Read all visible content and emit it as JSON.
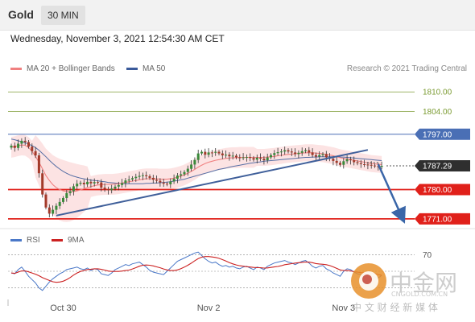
{
  "header": {
    "symbol": "Gold",
    "timeframe": "30 MIN"
  },
  "datetime": "Wednesday, November 3, 2021 12:54:30 AM CET",
  "legend": {
    "ma20_label": "MA 20 + Bollinger Bands",
    "ma50_label": "MA 50",
    "credit": "Research © 2021 Trading Central"
  },
  "rsi_legend": {
    "rsi_label": "RSI",
    "ma_label": "9MA"
  },
  "colors": {
    "ma20": "#f08080",
    "ma50": "#3a5a9a",
    "bollinger": "#fbd9d9",
    "resistance": "#7a9a30",
    "pivot": "#4a6fb5",
    "support": "#e0201a",
    "trendline": "#3f5f9a",
    "arrow": "#3a66a8",
    "bull_candle": "#3a8a3a",
    "bear_candle": "#a33a2a",
    "rsi": "#4a78c8",
    "rsi_ma": "#cc2222"
  },
  "watermark": {
    "brand": "中金网",
    "domain": "CNGOLD.COM.CN",
    "tagline": "中 文 财 经 新 媒 体"
  },
  "chart_data": {
    "type": "candlestick",
    "instrument": "Gold",
    "timeframe": "30 MIN",
    "x_ticks": [
      "Oct 30",
      "Nov 2",
      "Nov 3"
    ],
    "y_range": [
      1768,
      1815
    ],
    "levels": [
      {
        "value": 1810.0,
        "label": "1810.00",
        "kind": "resistance"
      },
      {
        "value": 1804.0,
        "label": "1804.00",
        "kind": "resistance"
      },
      {
        "value": 1797.0,
        "label": "1797.00",
        "kind": "pivot"
      },
      {
        "value": 1787.29,
        "label": "1787.29",
        "kind": "last"
      },
      {
        "value": 1780.0,
        "label": "1780.00",
        "kind": "support"
      },
      {
        "value": 1771.0,
        "label": "1771.00",
        "kind": "support"
      }
    ],
    "close": [
      1793.5,
      1792.8,
      1794.1,
      1795.0,
      1794.6,
      1793.2,
      1791.8,
      1790.5,
      1785.0,
      1778.5,
      1774.5,
      1772.6,
      1773.8,
      1775.0,
      1776.2,
      1777.4,
      1778.9,
      1779.5,
      1781.0,
      1781.8,
      1782.1,
      1781.6,
      1782.4,
      1781.9,
      1782.3,
      1782.2,
      1780.6,
      1780.1,
      1779.8,
      1780.3,
      1780.9,
      1781.4,
      1782.0,
      1782.8,
      1783.1,
      1783.5,
      1783.9,
      1784.2,
      1784.4,
      1784.1,
      1783.6,
      1783.0,
      1782.7,
      1782.2,
      1781.8,
      1781.6,
      1782.5,
      1783.3,
      1784.3,
      1784.7,
      1785.4,
      1786.4,
      1787.7,
      1789.1,
      1791.1,
      1791.6,
      1790.7,
      1791.4,
      1791.3,
      1791.6,
      1791.1,
      1790.5,
      1790.7,
      1790.2,
      1790.4,
      1789.9,
      1789.8,
      1789.9,
      1790.0,
      1789.7,
      1789.2,
      1789.8,
      1789.5,
      1789.0,
      1789.9,
      1790.6,
      1791.2,
      1791.5,
      1791.7,
      1792.1,
      1791.7,
      1791.4,
      1790.9,
      1791.3,
      1791.8,
      1792.1,
      1791.4,
      1790.6,
      1790.1,
      1790.6,
      1790.9,
      1789.9,
      1789.5,
      1788.8,
      1788.2,
      1787.6,
      1788.7,
      1789.3,
      1789.0,
      1788.4,
      1788.1,
      1787.8,
      1787.7,
      1787.6,
      1787.4,
      1787.2,
      1787.0,
      1787.29
    ],
    "ma20": [
      1793.0,
      1793.2,
      1793.5,
      1793.7,
      1793.6,
      1792.9,
      1791.8,
      1790.2,
      1788.4,
      1786.4,
      1784.3,
      1782.8,
      1781.5,
      1780.6,
      1780.0,
      1779.6,
      1779.4,
      1779.3,
      1779.4,
      1779.6,
      1779.9,
      1780.3,
      1780.6,
      1780.9,
      1781.2,
      1781.4,
      1781.5,
      1781.6,
      1781.6,
      1781.6,
      1781.7,
      1781.8,
      1782.0,
      1782.2,
      1782.4,
      1782.6,
      1782.8,
      1783.0,
      1783.2,
      1783.3,
      1783.3,
      1783.3,
      1783.3,
      1783.2,
      1783.2,
      1783.2,
      1783.3,
      1783.5,
      1783.8,
      1784.1,
      1784.5,
      1785.0,
      1785.6,
      1786.2,
      1786.9,
      1787.5,
      1788.0,
      1788.4,
      1788.7,
      1789.0,
      1789.2,
      1789.4,
      1789.6,
      1789.7,
      1789.8,
      1789.8,
      1789.9,
      1789.9,
      1789.9,
      1789.9,
      1789.9,
      1789.9,
      1789.9,
      1789.9,
      1790.0,
      1790.1,
      1790.2,
      1790.4,
      1790.5,
      1790.7,
      1790.8,
      1790.9,
      1791.0,
      1791.1,
      1791.2,
      1791.3,
      1791.3,
      1791.3,
      1791.2,
      1791.1,
      1791.0,
      1790.8,
      1790.6,
      1790.4,
      1790.1,
      1789.8,
      1789.6,
      1789.4,
      1789.2,
      1789.0,
      1788.8,
      1788.6,
      1788.4,
      1788.2,
      1788.0,
      1787.9,
      1787.8,
      1787.7
    ],
    "ma50": [
      1795.5,
      1795.3,
      1795.0,
      1794.7,
      1794.4,
      1794.0,
      1793.5,
      1792.9,
      1792.1,
      1791.1,
      1790.1,
      1789.0,
      1788.0,
      1787.1,
      1786.3,
      1785.6,
      1785.0,
      1784.5,
      1784.1,
      1783.8,
      1783.5,
      1783.3,
      1783.1,
      1782.9,
      1782.8,
      1782.7,
      1782.5,
      1782.4,
      1782.2,
      1782.1,
      1782.0,
      1781.9,
      1781.9,
      1781.8,
      1781.8,
      1781.8,
      1781.8,
      1781.8,
      1781.8,
      1781.9,
      1781.9,
      1782.0,
      1782.0,
      1782.1,
      1782.2,
      1782.3,
      1782.4,
      1782.6,
      1782.8,
      1783.0,
      1783.2,
      1783.5,
      1783.8,
      1784.1,
      1784.4,
      1784.7,
      1785.0,
      1785.3,
      1785.6,
      1785.9,
      1786.2,
      1786.4,
      1786.6,
      1786.9,
      1787.1,
      1787.3,
      1787.5,
      1787.7,
      1787.9,
      1788.1,
      1788.2,
      1788.4,
      1788.5,
      1788.7,
      1788.8,
      1788.9,
      1789.0,
      1789.1,
      1789.2,
      1789.3,
      1789.4,
      1789.5,
      1789.6,
      1789.7,
      1789.8,
      1789.9,
      1789.9,
      1790.0,
      1790.0,
      1790.1,
      1790.1,
      1790.1,
      1790.1,
      1790.1,
      1790.1,
      1790.0,
      1790.0,
      1789.9,
      1789.8,
      1789.7,
      1789.6,
      1789.5,
      1789.4,
      1789.3,
      1789.2,
      1789.1,
      1789.0,
      1788.9
    ],
    "trendline": {
      "from": {
        "index": 13,
        "value": 1772.0
      },
      "to": {
        "index": 103,
        "value": 1792.2
      }
    },
    "projection": {
      "from": {
        "index": 106,
        "value": 1787.8
      },
      "to": {
        "index": 113,
        "value": 1771.2
      }
    },
    "rsi_panel": {
      "level_label": "70",
      "rsi": [
        48,
        47,
        52,
        55,
        50,
        44,
        40,
        36,
        30,
        27,
        32,
        37,
        41,
        44,
        47,
        49,
        52,
        53,
        54,
        55,
        53,
        52,
        54,
        51,
        53,
        52,
        47,
        46,
        45,
        48,
        52,
        54,
        56,
        58,
        57,
        59,
        60,
        61,
        58,
        55,
        51,
        49,
        48,
        47,
        46,
        50,
        54,
        58,
        62,
        64,
        66,
        68,
        70,
        72,
        73,
        69,
        65,
        62,
        60,
        61,
        58,
        56,
        57,
        55,
        56,
        54,
        53,
        55,
        56,
        54,
        52,
        55,
        54,
        52,
        56,
        58,
        60,
        61,
        62,
        63,
        61,
        60,
        58,
        60,
        62,
        63,
        60,
        56,
        54,
        56,
        57,
        53,
        51,
        48,
        46,
        44,
        50,
        53,
        52,
        49,
        47,
        46,
        46,
        45,
        44,
        43,
        42,
        45
      ]
    }
  }
}
